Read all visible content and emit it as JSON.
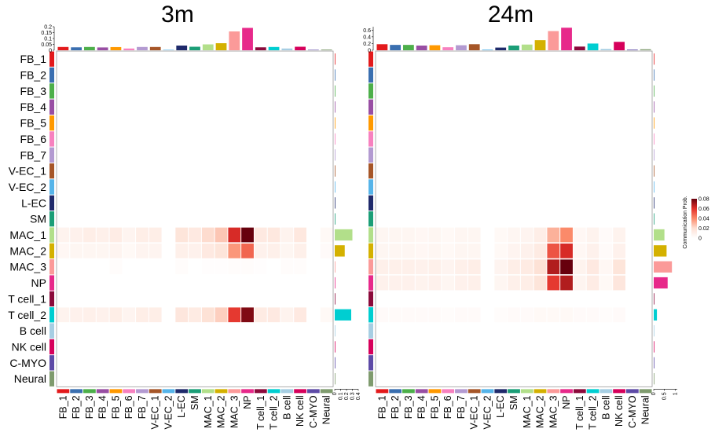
{
  "chart_data": {
    "type": "heatmap",
    "value_label": "Communication Prob.",
    "legend": {
      "title": "Communication Prob.",
      "ticks": [
        "0",
        "0.02",
        "0.04",
        "0.06",
        "0.08"
      ],
      "range": [
        0,
        0.08
      ],
      "colors": [
        "#ffffff",
        "#fde0d4",
        "#fb8a6a",
        "#e3302a",
        "#67000d"
      ],
      "placement": "right"
    },
    "cell_types": [
      "FB_1",
      "FB_2",
      "FB_3",
      "FB_4",
      "FB_5",
      "FB_6",
      "FB_7",
      "V-EC_1",
      "V-EC_2",
      "L-EC",
      "SM",
      "MAC_1",
      "MAC_2",
      "MAC_3",
      "NP",
      "T cell_1",
      "T cell_2",
      "B cell",
      "NK cell",
      "C-MYO",
      "Neural"
    ],
    "cell_type_colors": [
      "#e31a1c",
      "#3a6fb0",
      "#4daf4a",
      "#984ea3",
      "#ff9900",
      "#f781bf",
      "#b39ad1",
      "#a65628",
      "#56b4e9",
      "#1f2a6b",
      "#1b9e77",
      "#b2df8a",
      "#d4b100",
      "#fb9a99",
      "#e7298a",
      "#8b0a3b",
      "#00ced1",
      "#a6cee3",
      "#d6005b",
      "#5d4aa6",
      "#7f9b6e"
    ],
    "panels": [
      {
        "title": "3m",
        "top_bar": {
          "ticks": [
            "0",
            "0.05",
            "0.1",
            "0.15",
            "0.2"
          ],
          "range": [
            0,
            0.2
          ],
          "values": [
            0.028,
            0.025,
            0.028,
            0.024,
            0.027,
            0.015,
            0.028,
            0.028,
            0.004,
            0.04,
            0.03,
            0.05,
            0.06,
            0.16,
            0.19,
            0.025,
            0.028,
            0.015,
            0.03,
            0.004,
            0.006
          ]
        },
        "right_bar": {
          "ticks": [
            "0",
            "0.1",
            "0.2",
            "0.3",
            "0.4"
          ],
          "range": [
            0,
            0.4
          ],
          "values": [
            0.003,
            0.003,
            0.003,
            0.003,
            0.003,
            0.003,
            0.003,
            0.003,
            0.003,
            0.003,
            0.003,
            0.3,
            0.17,
            0.004,
            0.003,
            0.003,
            0.28,
            0.003,
            0.003,
            0.003,
            0.003
          ]
        },
        "matrix": [
          [
            0,
            0,
            0,
            0,
            0,
            0,
            0,
            0,
            0,
            0,
            0,
            0,
            0,
            0,
            0,
            0,
            0,
            0,
            0,
            0,
            0
          ],
          [
            0,
            0,
            0,
            0,
            0,
            0,
            0,
            0,
            0,
            0,
            0,
            0,
            0,
            0,
            0,
            0,
            0,
            0,
            0,
            0,
            0
          ],
          [
            0,
            0,
            0,
            0,
            0,
            0,
            0,
            0,
            0,
            0,
            0,
            0,
            0,
            0,
            0,
            0,
            0,
            0,
            0,
            0,
            0
          ],
          [
            0,
            0,
            0,
            0,
            0,
            0,
            0,
            0,
            0,
            0,
            0,
            0,
            0,
            0,
            0,
            0,
            0,
            0,
            0,
            0,
            0
          ],
          [
            0,
            0,
            0,
            0,
            0,
            0,
            0,
            0,
            0,
            0,
            0,
            0,
            0,
            0,
            0,
            0,
            0,
            0,
            0,
            0,
            0
          ],
          [
            0,
            0,
            0,
            0,
            0,
            0,
            0,
            0,
            0,
            0,
            0,
            0,
            0,
            0,
            0,
            0,
            0,
            0,
            0,
            0,
            0
          ],
          [
            0,
            0,
            0,
            0,
            0,
            0,
            0,
            0,
            0,
            0,
            0,
            0,
            0,
            0,
            0,
            0,
            0,
            0,
            0,
            0,
            0
          ],
          [
            0,
            0,
            0,
            0,
            0,
            0,
            0,
            0,
            0,
            0,
            0,
            0,
            0,
            0,
            0,
            0,
            0,
            0,
            0,
            0,
            0
          ],
          [
            0,
            0,
            0,
            0,
            0,
            0,
            0,
            0,
            0,
            0,
            0,
            0,
            0,
            0,
            0,
            0,
            0,
            0,
            0,
            0,
            0
          ],
          [
            0,
            0,
            0,
            0,
            0,
            0,
            0,
            0,
            0,
            0,
            0,
            0,
            0,
            0,
            0,
            0,
            0,
            0,
            0,
            0,
            0
          ],
          [
            0,
            0,
            0,
            0,
            0,
            0,
            0,
            0,
            0,
            0,
            0,
            0,
            0,
            0,
            0,
            0,
            0,
            0,
            0,
            0,
            0
          ],
          [
            0.008,
            0.009,
            0.011,
            0.01,
            0.012,
            0.007,
            0.011,
            0.011,
            0,
            0.017,
            0.014,
            0.021,
            0.026,
            0.062,
            0.08,
            0.014,
            0.015,
            0.008,
            0.015,
            0,
            0.004
          ],
          [
            0.005,
            0.006,
            0.006,
            0.006,
            0.007,
            0.004,
            0.007,
            0.007,
            0,
            0.01,
            0.009,
            0.014,
            0.017,
            0.037,
            0.048,
            0.009,
            0.01,
            0.006,
            0.01,
            0,
            0.003
          ],
          [
            0,
            0,
            0,
            0,
            0.002,
            0,
            0,
            0,
            0,
            0.002,
            0,
            0.001,
            0.001,
            0.002,
            0.002,
            0.001,
            0,
            0.002,
            0.002,
            0,
            0
          ],
          [
            0,
            0,
            0,
            0,
            0,
            0,
            0,
            0,
            0,
            0,
            0,
            0,
            0,
            0,
            0,
            0,
            0,
            0,
            0,
            0,
            0
          ],
          [
            0,
            0,
            0,
            0,
            0,
            0,
            0,
            0,
            0,
            0,
            0,
            0,
            0,
            0,
            0,
            0,
            0,
            0,
            0,
            0,
            0
          ],
          [
            0.008,
            0.009,
            0.01,
            0.009,
            0.011,
            0.007,
            0.011,
            0.011,
            0,
            0.016,
            0.013,
            0.019,
            0.024,
            0.058,
            0.076,
            0.013,
            0.014,
            0.008,
            0.014,
            0,
            0.004
          ],
          [
            0,
            0,
            0,
            0,
            0,
            0,
            0,
            0,
            0,
            0,
            0,
            0,
            0,
            0,
            0,
            0,
            0,
            0,
            0,
            0,
            0
          ],
          [
            0,
            0,
            0,
            0,
            0,
            0,
            0,
            0,
            0,
            0,
            0,
            0,
            0,
            0,
            0,
            0,
            0,
            0,
            0,
            0,
            0
          ],
          [
            0,
            0,
            0,
            0,
            0,
            0,
            0,
            0,
            0,
            0,
            0,
            0,
            0,
            0,
            0,
            0,
            0,
            0,
            0,
            0,
            0
          ],
          [
            0,
            0,
            0,
            0,
            0,
            0,
            0,
            0,
            0,
            0,
            0,
            0,
            0,
            0,
            0,
            0,
            0,
            0,
            0,
            0,
            0
          ]
        ]
      },
      {
        "title": "24m",
        "top_bar": {
          "ticks": [
            "0",
            "0.2",
            "0.4",
            "0.6"
          ],
          "range": [
            0,
            0.7
          ],
          "values": [
            0.18,
            0.16,
            0.16,
            0.14,
            0.15,
            0.09,
            0.15,
            0.18,
            0.02,
            0.08,
            0.14,
            0.17,
            0.3,
            0.57,
            0.67,
            0.11,
            0.2,
            0.04,
            0.25,
            0.02,
            0.03
          ]
        },
        "right_bar": {
          "ticks": [
            "0",
            "0.5",
            "1"
          ],
          "range": [
            0,
            1.1
          ],
          "values": [
            0.01,
            0.01,
            0.01,
            0.01,
            0.01,
            0.01,
            0.01,
            0.01,
            0.01,
            0.01,
            0.01,
            0.5,
            0.6,
            0.85,
            0.65,
            0.02,
            0.15,
            0.01,
            0.01,
            0.01,
            0.01
          ]
        },
        "matrix": [
          [
            0,
            0,
            0,
            0,
            0,
            0,
            0,
            0,
            0,
            0,
            0,
            0,
            0,
            0,
            0,
            0,
            0,
            0,
            0,
            0,
            0
          ],
          [
            0,
            0,
            0,
            0,
            0,
            0,
            0,
            0,
            0,
            0,
            0,
            0,
            0,
            0,
            0,
            0,
            0,
            0,
            0,
            0,
            0
          ],
          [
            0,
            0,
            0,
            0,
            0,
            0,
            0,
            0,
            0,
            0,
            0,
            0,
            0,
            0,
            0,
            0,
            0,
            0,
            0,
            0,
            0
          ],
          [
            0,
            0,
            0,
            0,
            0,
            0,
            0,
            0,
            0,
            0,
            0,
            0,
            0,
            0,
            0,
            0,
            0,
            0,
            0,
            0,
            0
          ],
          [
            0,
            0,
            0,
            0,
            0,
            0,
            0,
            0,
            0,
            0,
            0,
            0,
            0,
            0,
            0,
            0,
            0,
            0,
            0,
            0,
            0
          ],
          [
            0,
            0,
            0,
            0,
            0,
            0,
            0,
            0,
            0,
            0,
            0,
            0,
            0,
            0,
            0,
            0,
            0,
            0,
            0,
            0,
            0
          ],
          [
            0,
            0,
            0,
            0,
            0,
            0,
            0,
            0,
            0,
            0,
            0,
            0,
            0,
            0,
            0,
            0,
            0,
            0,
            0,
            0,
            0
          ],
          [
            0,
            0,
            0,
            0,
            0,
            0,
            0,
            0,
            0,
            0,
            0,
            0,
            0,
            0,
            0,
            0,
            0,
            0,
            0,
            0,
            0
          ],
          [
            0,
            0,
            0,
            0,
            0,
            0,
            0,
            0,
            0,
            0,
            0,
            0,
            0,
            0,
            0,
            0,
            0,
            0,
            0,
            0,
            0
          ],
          [
            0,
            0,
            0,
            0,
            0,
            0,
            0,
            0,
            0,
            0,
            0,
            0,
            0,
            0,
            0,
            0,
            0,
            0,
            0,
            0,
            0
          ],
          [
            0,
            0,
            0,
            0,
            0,
            0,
            0,
            0,
            0,
            0,
            0,
            0,
            0,
            0,
            0,
            0,
            0,
            0,
            0,
            0,
            0
          ],
          [
            0.006,
            0.006,
            0.006,
            0.005,
            0.006,
            0.004,
            0.006,
            0.006,
            0,
            0.004,
            0.006,
            0.007,
            0.011,
            0.031,
            0.04,
            0.005,
            0.008,
            0.003,
            0.008,
            0,
            0
          ],
          [
            0.006,
            0.006,
            0.006,
            0.005,
            0.006,
            0.004,
            0.006,
            0.006,
            0,
            0.004,
            0.007,
            0.009,
            0.013,
            0.052,
            0.062,
            0.005,
            0.009,
            0.003,
            0.009,
            0,
            0
          ],
          [
            0.01,
            0.01,
            0.01,
            0.009,
            0.01,
            0.007,
            0.01,
            0.011,
            0,
            0.007,
            0.011,
            0.013,
            0.019,
            0.068,
            0.08,
            0.008,
            0.014,
            0.005,
            0.017,
            0,
            0
          ],
          [
            0.009,
            0.009,
            0.009,
            0.008,
            0.009,
            0.006,
            0.009,
            0.01,
            0,
            0.006,
            0.01,
            0.011,
            0.017,
            0.058,
            0.068,
            0.007,
            0.012,
            0.004,
            0.016,
            0,
            0
          ],
          [
            0,
            0,
            0,
            0,
            0,
            0,
            0,
            0,
            0,
            0,
            0,
            0,
            0,
            0,
            0,
            0,
            0,
            0,
            0,
            0,
            0
          ],
          [
            0.003,
            0.003,
            0.003,
            0.003,
            0.003,
            0.002,
            0.003,
            0.003,
            0,
            0.002,
            0.003,
            0.003,
            0.004,
            0.004,
            0.004,
            0.003,
            0.003,
            0.002,
            0.003,
            0,
            0
          ],
          [
            0,
            0,
            0,
            0,
            0,
            0,
            0,
            0,
            0,
            0,
            0,
            0,
            0,
            0,
            0,
            0,
            0,
            0,
            0,
            0,
            0
          ],
          [
            0,
            0,
            0,
            0,
            0,
            0,
            0,
            0,
            0,
            0,
            0,
            0,
            0,
            0,
            0,
            0,
            0,
            0,
            0,
            0,
            0
          ],
          [
            0,
            0,
            0,
            0,
            0,
            0,
            0,
            0,
            0,
            0,
            0,
            0,
            0,
            0,
            0,
            0,
            0,
            0,
            0,
            0,
            0
          ],
          [
            0,
            0,
            0,
            0,
            0,
            0,
            0,
            0,
            0,
            0,
            0,
            0,
            0,
            0,
            0,
            0,
            0,
            0,
            0,
            0,
            0
          ]
        ]
      }
    ]
  }
}
